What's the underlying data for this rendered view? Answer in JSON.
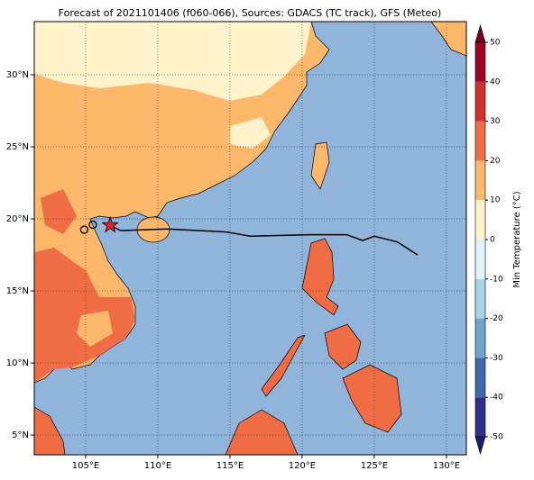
{
  "map": {
    "title": "Forecast of 2021101406 (f060-066), Sources: GDACS (TC track), GFS (Meteo)",
    "xlim": [
      101.44,
      131.38
    ],
    "ylim": [
      3.63,
      33.69
    ],
    "xticks": [
      {
        "value": 105,
        "label": "105°E"
      },
      {
        "value": 110,
        "label": "110°E"
      },
      {
        "value": 115,
        "label": "115°E"
      },
      {
        "value": 120,
        "label": "120°E"
      },
      {
        "value": 125,
        "label": "125°E"
      },
      {
        "value": 130,
        "label": "130°E"
      }
    ],
    "yticks": [
      {
        "value": 5,
        "label": "5°N"
      },
      {
        "value": 10,
        "label": "10°N"
      },
      {
        "value": 15,
        "label": "15°N"
      },
      {
        "value": 20,
        "label": "20°N"
      },
      {
        "value": 25,
        "label": "25°N"
      },
      {
        "value": 30,
        "label": "30°N"
      }
    ],
    "grid": true,
    "track": {
      "color": "#000000",
      "lon": [
        106.7,
        107.4,
        107.8,
        110.6,
        114.7,
        116.4,
        120.6,
        123.1,
        124.2,
        125.0,
        126.6,
        128.0
      ],
      "lat": [
        19.56,
        19.2,
        19.2,
        19.3,
        19.1,
        18.8,
        18.9,
        18.9,
        18.5,
        18.8,
        18.4,
        17.5
      ]
    },
    "current_position": {
      "lon": 106.7,
      "lat": 19.56,
      "color": "#e8202a"
    },
    "past_positions": {
      "lon": [
        104.9,
        105.5
      ],
      "lat": [
        19.25,
        19.6
      ]
    }
  },
  "colorbar": {
    "label": "Min Temperature (°C)",
    "lim": [
      -50,
      50
    ],
    "ticks": [
      -50,
      -40,
      -30,
      -20,
      -10,
      0,
      10,
      20,
      30,
      40,
      50
    ],
    "colors": [
      "#2e2e8f",
      "#3c6aab",
      "#6fa6cf",
      "#a9d3e6",
      "#e2f3f7",
      "#fff3cc",
      "#fdb86b",
      "#f06c45",
      "#d33028",
      "#a30026"
    ],
    "under_color": "#1a1a6e",
    "over_color": "#7a0020"
  }
}
